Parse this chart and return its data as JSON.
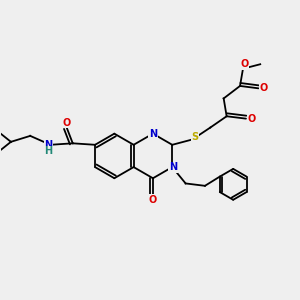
{
  "background_color": "#efefef",
  "fig_size": [
    3.0,
    3.0
  ],
  "dpi": 100,
  "atom_colors": {
    "C": "#000000",
    "N": "#0000cc",
    "O": "#dd0000",
    "S": "#bbaa00",
    "H": "#228877"
  },
  "bond_color": "#000000",
  "bond_width": 1.3,
  "font_size_atom": 7.0
}
